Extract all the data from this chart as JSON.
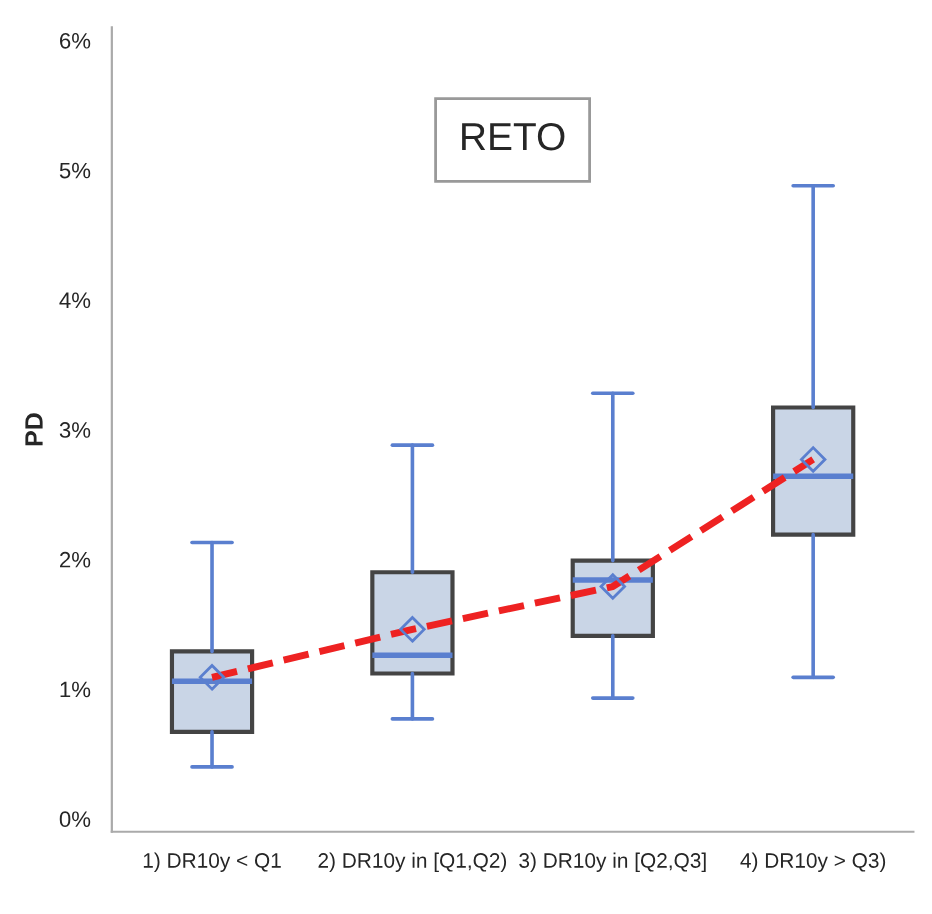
{
  "chart_data": {
    "type": "box",
    "title": "RETO",
    "ylabel": "PD",
    "categories": [
      "1) DR10y < Q1",
      "2) DR10y in [Q1,Q2)",
      "3) DR10y in [Q2,Q3]",
      "4) DR10y > Q3)"
    ],
    "boxes": [
      {
        "low": 0.4,
        "q1": 0.67,
        "median": 1.06,
        "q3": 1.29,
        "high": 2.13,
        "mean": 1.09
      },
      {
        "low": 0.77,
        "q1": 1.12,
        "median": 1.26,
        "q3": 1.9,
        "high": 2.88,
        "mean": 1.46
      },
      {
        "low": 0.93,
        "q1": 1.41,
        "median": 1.84,
        "q3": 1.99,
        "high": 3.28,
        "mean": 1.79
      },
      {
        "low": 1.09,
        "q1": 2.19,
        "median": 2.64,
        "q3": 3.17,
        "high": 4.88,
        "mean": 2.77
      }
    ],
    "color": "#c9d5e6",
    "series": [
      {
        "type": "line",
        "color": "#ee2222",
        "line_style": "dashed",
        "marker": "none",
        "values": [
          1.09,
          1.46,
          1.79,
          2.77
        ]
      }
    ],
    "ylim": [
      -0.1,
      6.1
    ],
    "yticks": [
      {
        "value": 0,
        "label": "0%"
      },
      {
        "value": 1,
        "label": "1%"
      },
      {
        "value": 2,
        "label": "2%"
      },
      {
        "value": 3,
        "label": "3%"
      },
      {
        "value": 4,
        "label": "4%"
      },
      {
        "value": 5,
        "label": "5%"
      },
      {
        "value": 6,
        "label": "6%"
      }
    ],
    "grid": false,
    "legend": false
  }
}
